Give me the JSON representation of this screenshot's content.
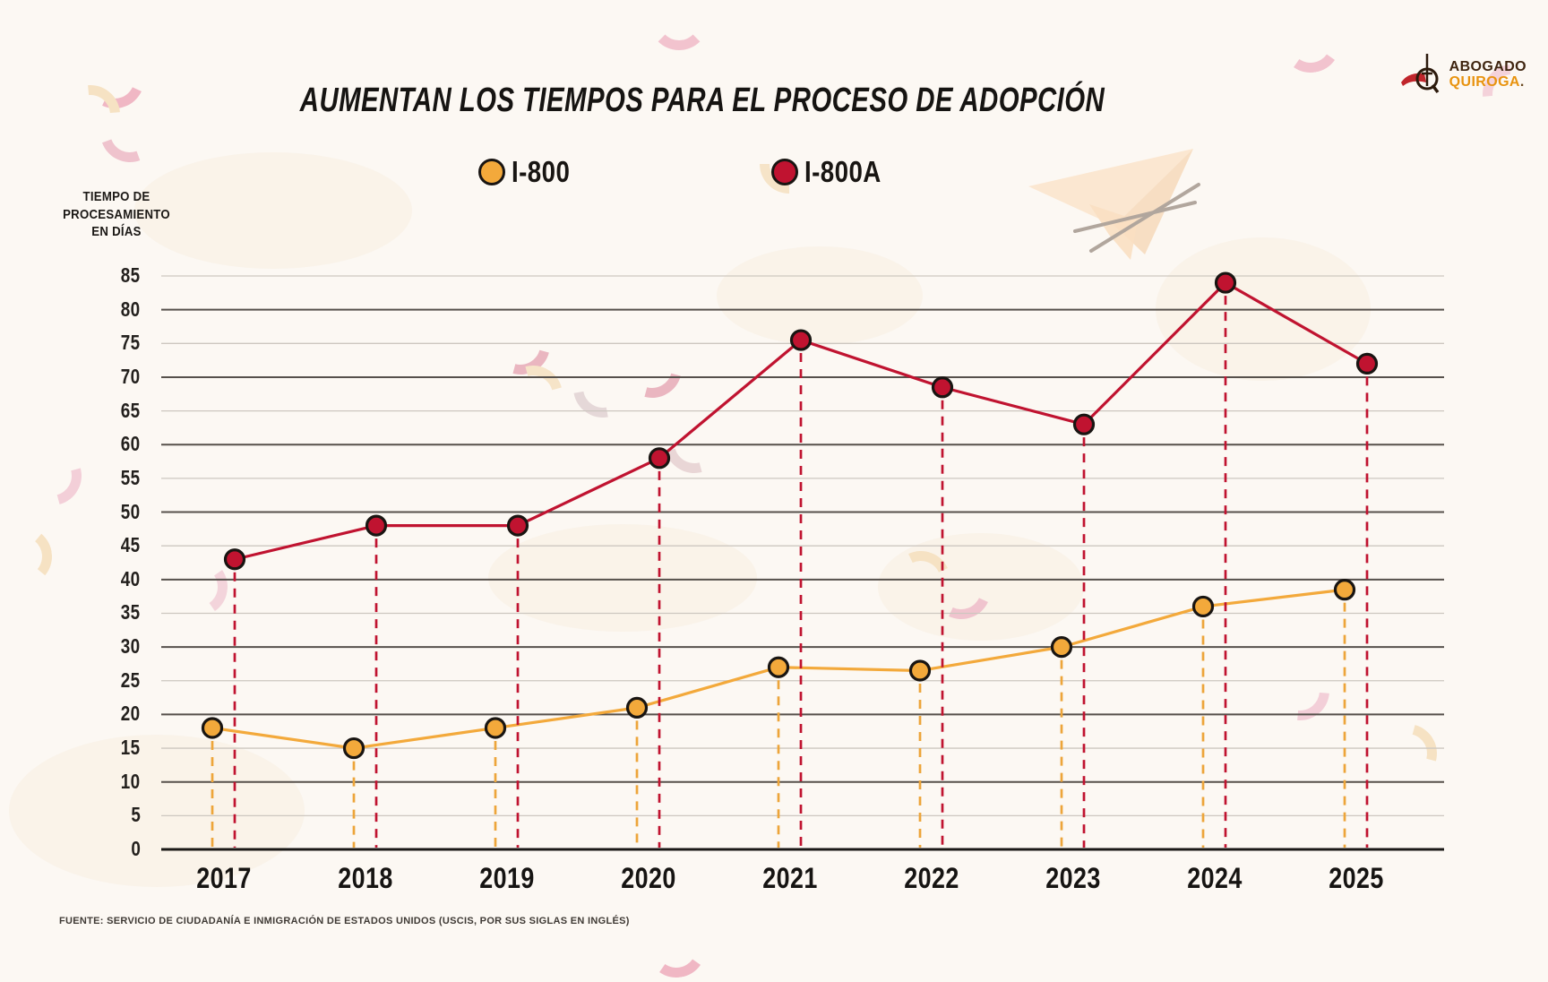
{
  "header": {
    "title": "AUMENTAN LOS TIEMPOS PARA EL PROCESO DE ADOPCIÓN",
    "logo": {
      "line1": "ABOGADO",
      "line2": "QUIROGA",
      "suffix": "."
    }
  },
  "legend": [
    {
      "label": "I-800",
      "color": "#F3A93B",
      "outline": "#191512"
    },
    {
      "label": "I-800A",
      "color": "#C01330",
      "outline": "#191512"
    }
  ],
  "axis_title_lines": [
    "TIEMPO DE",
    "PROCESAMIENTO",
    "EN DÍAS"
  ],
  "footer": {
    "source": "FUENTE: SERVICIO DE CIUDADANÍA E INMIGRACIÓN DE ESTADOS UNIDOS (USCIS, POR SUS SIGLAS EN INGLÉS)"
  },
  "colors": {
    "background": "#fcf8f3",
    "series_i800": "#F3A93B",
    "series_i800a": "#C01330",
    "grid_major": "#56504b",
    "grid_minor": "#cdc7c0",
    "baseline": "#1b1917",
    "marker_outline": "#191512"
  },
  "chart_data": {
    "type": "line",
    "title": "AUMENTAN LOS TIEMPOS PARA EL PROCESO DE ADOPCIÓN",
    "categories": [
      "2017",
      "2018",
      "2019",
      "2020",
      "2021",
      "2022",
      "2023",
      "2024",
      "2025"
    ],
    "series": [
      {
        "name": "I-800",
        "color": "#F3A93B",
        "dash_color": "#EDA53A",
        "values": [
          18,
          15,
          18,
          21,
          27,
          26.5,
          30,
          36,
          38.5
        ]
      },
      {
        "name": "I-800A",
        "color": "#C01330",
        "dash_color": "#C01330",
        "values": [
          43,
          48,
          48,
          58,
          75.5,
          68.5,
          63,
          84,
          72
        ]
      }
    ],
    "xlabel": "",
    "ylabel": "TIEMPO DE PROCESAMIENTO EN DÍAS",
    "ylim": [
      0,
      85
    ],
    "ytick_step": 5,
    "grid": "horizontal, darker lines every 10",
    "legend_position": "top",
    "markers": "filled circles with black outline",
    "drop_lines": "dashed vertical line from each point to baseline"
  }
}
